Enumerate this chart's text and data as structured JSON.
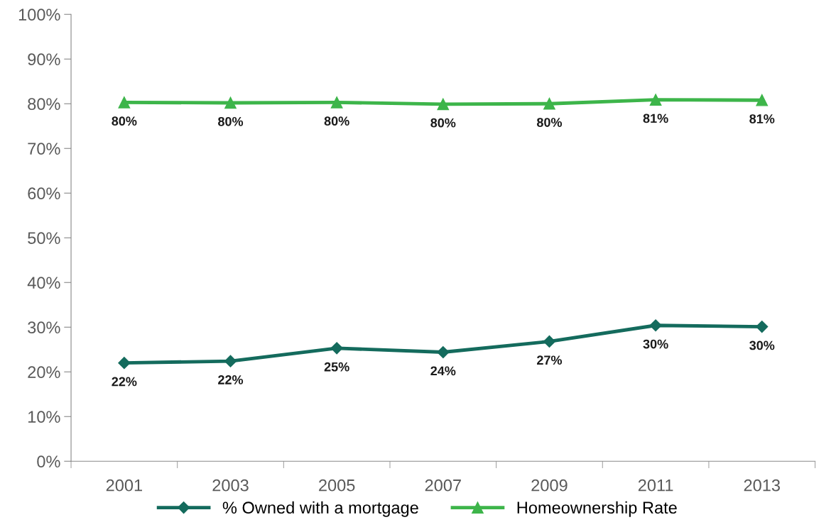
{
  "chart_data": {
    "type": "line",
    "categories": [
      "2001",
      "2003",
      "2005",
      "2007",
      "2009",
      "2011",
      "2013"
    ],
    "series": [
      {
        "name": "% Owned with a mortgage",
        "color": "#146b5d",
        "marker": "diamond",
        "values": [
          22.0,
          22.4,
          25.3,
          24.4,
          26.8,
          30.4,
          30.1
        ],
        "value_labels": [
          "22%",
          "22%",
          "25%",
          "24%",
          "27%",
          "30%",
          "30%"
        ]
      },
      {
        "name": "Homeownership Rate",
        "color": "#3db54a",
        "marker": "triangle",
        "values": [
          80.3,
          80.2,
          80.3,
          79.9,
          80.0,
          80.9,
          80.8
        ],
        "value_labels": [
          "80%",
          "80%",
          "80%",
          "80%",
          "80%",
          "81%",
          "81%"
        ]
      }
    ],
    "ylim": [
      0,
      100
    ],
    "yticks": [
      {
        "value": 0,
        "label": "0%"
      },
      {
        "value": 10,
        "label": "10%"
      },
      {
        "value": 20,
        "label": "20%"
      },
      {
        "value": 30,
        "label": "30%"
      },
      {
        "value": 40,
        "label": "40%"
      },
      {
        "value": 50,
        "label": "50%"
      },
      {
        "value": 60,
        "label": "60%"
      },
      {
        "value": 70,
        "label": "70%"
      },
      {
        "value": 80,
        "label": "80%"
      },
      {
        "value": 90,
        "label": "90%"
      },
      {
        "value": 100,
        "label": "100%"
      }
    ],
    "grid": false,
    "legend": "bottom",
    "line_style": "solid"
  }
}
